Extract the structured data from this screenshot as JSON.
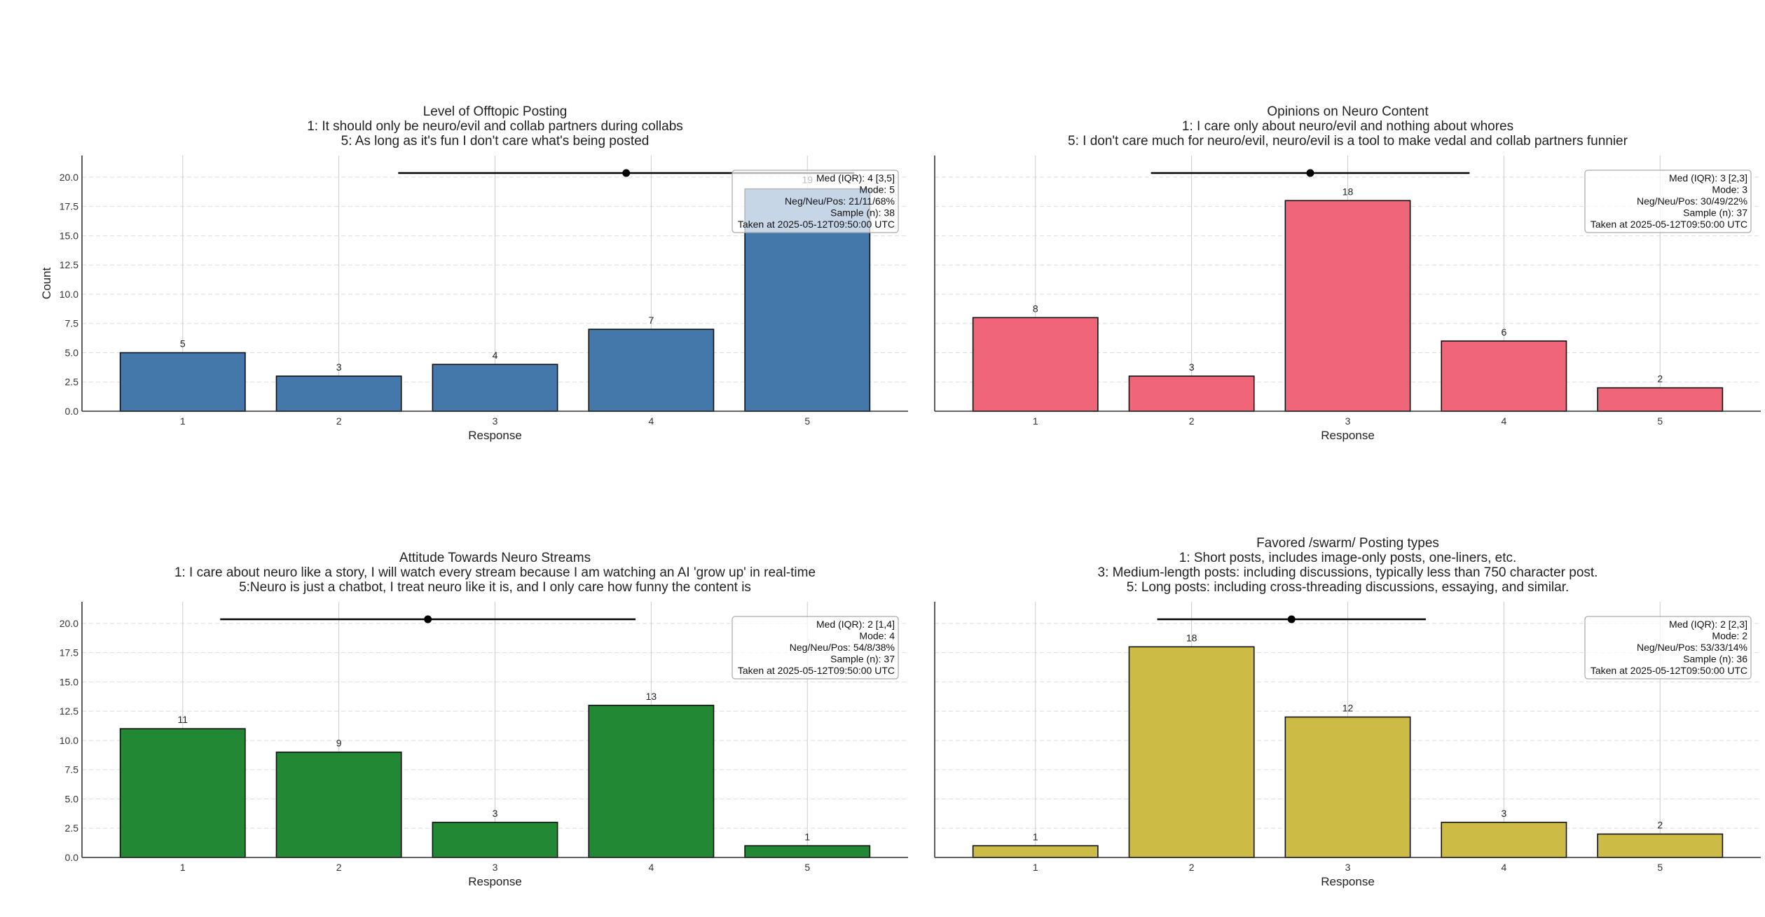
{
  "chart_data": [
    {
      "type": "bar",
      "title": "Level of Offtopic Posting",
      "subtitle_lines": [
        "1: It should only be neuro/evil and collab partners during collabs",
        "5: As long as it's fun I don't care what's being posted"
      ],
      "categories": [
        "1",
        "2",
        "3",
        "4",
        "5"
      ],
      "values": [
        5,
        3,
        4,
        7,
        19
      ],
      "xlabel": "Response",
      "ylabel": "Count",
      "ylim": [
        0,
        21.85
      ],
      "yticks": [
        "0.0",
        "2.5",
        "5.0",
        "7.5",
        "10.0",
        "12.5",
        "15.0",
        "17.5",
        "20.0"
      ],
      "show_yticklabels": true,
      "color": "#4477AA",
      "mean": 3.84,
      "sd": 1.46,
      "grid": true,
      "stats_box": {
        "placement": "top-right",
        "lines": [
          "Med (IQR): 4 [3,5]",
          "Mode: 5",
          "Neg/Neu/Pos: 21/11/68%",
          "Sample (n): 38",
          "Taken at 2025-05-12T09:50:00 UTC"
        ]
      }
    },
    {
      "type": "bar",
      "title": "Opinions on Neuro Content",
      "subtitle_lines": [
        "1: I care only about neuro/evil and nothing about whores",
        "5: I don't care much for neuro/evil, neuro/evil is a tool to make vedal and collab partners funnier"
      ],
      "categories": [
        "1",
        "2",
        "3",
        "4",
        "5"
      ],
      "values": [
        8,
        3,
        18,
        6,
        2
      ],
      "xlabel": "Response",
      "ylabel": "",
      "ylim": [
        0,
        21.85
      ],
      "yticks": [
        "0.0",
        "2.5",
        "5.0",
        "7.5",
        "10.0",
        "12.5",
        "15.0",
        "17.5",
        "20.0"
      ],
      "show_yticklabels": false,
      "color": "#EE6677",
      "mean": 2.76,
      "sd": 1.02,
      "grid": true,
      "stats_box": {
        "placement": "top-right",
        "lines": [
          "Med (IQR): 3 [2,3]",
          "Mode: 3",
          "Neg/Neu/Pos: 30/49/22%",
          "Sample (n): 37",
          "Taken at 2025-05-12T09:50:00 UTC"
        ]
      }
    },
    {
      "type": "bar",
      "title": "Attitude Towards Neuro Streams",
      "subtitle_lines": [
        "1: I care about neuro like a story, I will watch every stream because I am watching an AI 'grow up' in real-time",
        "5:Neuro is just a chatbot, I treat neuro like it is, and I only care how funny the content is"
      ],
      "categories": [
        "1",
        "2",
        "3",
        "4",
        "5"
      ],
      "values": [
        11,
        9,
        3,
        13,
        1
      ],
      "xlabel": "Response",
      "ylabel": "",
      "ylim": [
        0,
        21.85
      ],
      "yticks": [
        "0.0",
        "2.5",
        "5.0",
        "7.5",
        "10.0",
        "12.5",
        "15.0",
        "17.5",
        "20.0"
      ],
      "show_yticklabels": true,
      "color": "#228833",
      "mean": 2.57,
      "sd": 1.33,
      "grid": true,
      "stats_box": {
        "placement": "top-right",
        "lines": [
          "Med (IQR): 2 [1,4]",
          "Mode: 4",
          "Neg/Neu/Pos: 54/8/38%",
          "Sample (n): 37",
          "Taken at 2025-05-12T09:50:00 UTC"
        ]
      }
    },
    {
      "type": "bar",
      "title": "Favored /swarm/ Posting types",
      "subtitle_lines": [
        "1: Short posts, includes image-only posts, one-liners, etc.",
        "3: Medium-length posts: including discussions, typically less than 750 character post.",
        "5: Long posts: including cross-threading discussions, essaying, and similar."
      ],
      "categories": [
        "1",
        "2",
        "3",
        "4",
        "5"
      ],
      "values": [
        1,
        18,
        12,
        3,
        2
      ],
      "xlabel": "Response",
      "ylabel": "",
      "ylim": [
        0,
        21.85
      ],
      "yticks": [
        "0.0",
        "2.5",
        "5.0",
        "7.5",
        "10.0",
        "12.5",
        "15.0",
        "17.5",
        "20.0"
      ],
      "show_yticklabels": false,
      "color": "#CCBB44",
      "mean": 2.64,
      "sd": 0.86,
      "grid": true,
      "stats_box": {
        "placement": "top-right",
        "lines": [
          "Med (IQR): 2 [2,3]",
          "Mode: 2",
          "Neg/Neu/Pos: 53/33/14%",
          "Sample (n): 36",
          "Taken at 2025-05-12T09:50:00 UTC"
        ]
      }
    }
  ]
}
